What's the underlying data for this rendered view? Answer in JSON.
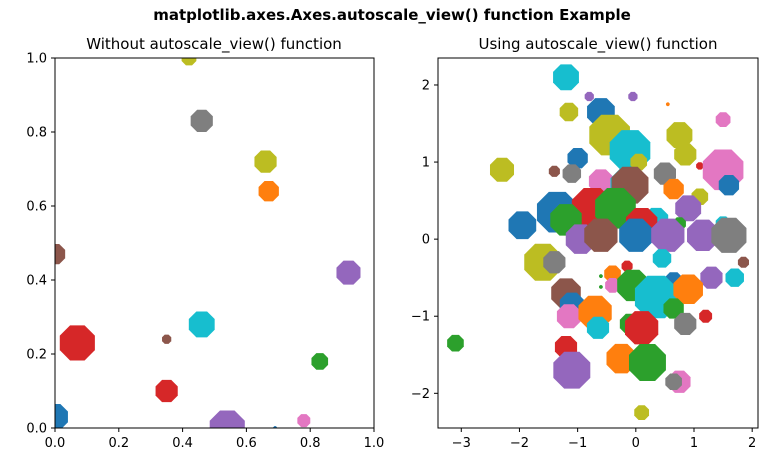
{
  "figure": {
    "title": "matplotlib.axes.Axes.autoscale_view() function Example"
  },
  "chart_data": [
    {
      "type": "scatter",
      "marker": "octagon",
      "title": "Without autoscale_view() function",
      "xlabel": "",
      "ylabel": "",
      "xlim": [
        0,
        1
      ],
      "ylim": [
        0,
        1
      ],
      "xticks": [
        "0.0",
        "0.2",
        "0.4",
        "0.6",
        "0.8",
        "1.0"
      ],
      "yticks": [
        "0.0",
        "0.2",
        "0.4",
        "0.6",
        "0.8",
        "1.0"
      ],
      "grid": false,
      "points": [
        {
          "x": 0.42,
          "y": 1.0,
          "size": 8,
          "color": "#bcbd22"
        },
        {
          "x": 0.46,
          "y": 0.83,
          "size": 12,
          "color": "#7f7f7f"
        },
        {
          "x": 0.66,
          "y": 0.72,
          "size": 12,
          "color": "#bcbd22"
        },
        {
          "x": 0.67,
          "y": 0.64,
          "size": 11,
          "color": "#ff7f0e"
        },
        {
          "x": 0.0,
          "y": 0.47,
          "size": 11,
          "color": "#8c564b"
        },
        {
          "x": 0.92,
          "y": 0.42,
          "size": 13,
          "color": "#9467bd"
        },
        {
          "x": 0.46,
          "y": 0.28,
          "size": 14,
          "color": "#17becf"
        },
        {
          "x": 0.07,
          "y": 0.23,
          "size": 19,
          "color": "#d62728"
        },
        {
          "x": 0.35,
          "y": 0.24,
          "size": 5,
          "color": "#8c564b"
        },
        {
          "x": 0.83,
          "y": 0.18,
          "size": 9,
          "color": "#2ca02c"
        },
        {
          "x": 0.35,
          "y": 0.1,
          "size": 12,
          "color": "#d62728"
        },
        {
          "x": 0.54,
          "y": 0.0,
          "size": 19,
          "color": "#9467bd"
        },
        {
          "x": 0.78,
          "y": 0.02,
          "size": 7,
          "color": "#e377c2"
        },
        {
          "x": 0.0,
          "y": 0.03,
          "size": 14,
          "color": "#1f77b4"
        },
        {
          "x": 0.69,
          "y": 0.0,
          "size": 2,
          "color": "#1f77b4"
        }
      ]
    },
    {
      "type": "scatter",
      "marker": "octagon",
      "title": "Using autoscale_view() function",
      "xlabel": "",
      "ylabel": "",
      "xlim": [
        -3.4,
        2.1
      ],
      "ylim": [
        -2.45,
        2.35
      ],
      "xticks": [
        "−3",
        "−2",
        "−1",
        "0",
        "1",
        "2"
      ],
      "xtick_values": [
        -3,
        -2,
        -1,
        0,
        1,
        2
      ],
      "yticks": [
        "−2",
        "−1",
        "0",
        "1",
        "2"
      ],
      "ytick_values": [
        -2,
        -1,
        0,
        1,
        2
      ],
      "grid": false,
      "points": [
        {
          "x": -1.2,
          "y": 2.1,
          "size": 14,
          "color": "#17becf"
        },
        {
          "x": -0.8,
          "y": 1.85,
          "size": 5,
          "color": "#9467bd"
        },
        {
          "x": -0.05,
          "y": 1.85,
          "size": 5,
          "color": "#9467bd"
        },
        {
          "x": 0.55,
          "y": 1.75,
          "size": 2,
          "color": "#ff7f0e"
        },
        {
          "x": -1.15,
          "y": 1.65,
          "size": 10,
          "color": "#bcbd22"
        },
        {
          "x": -0.6,
          "y": 1.65,
          "size": 15,
          "color": "#1f77b4"
        },
        {
          "x": 1.5,
          "y": 1.55,
          "size": 8,
          "color": "#e377c2"
        },
        {
          "x": -0.45,
          "y": 1.35,
          "size": 22,
          "color": "#bcbd22"
        },
        {
          "x": 0.75,
          "y": 1.35,
          "size": 14,
          "color": "#bcbd22"
        },
        {
          "x": -0.1,
          "y": 1.15,
          "size": 22,
          "color": "#17becf"
        },
        {
          "x": -1.0,
          "y": 1.05,
          "size": 11,
          "color": "#1f77b4"
        },
        {
          "x": 0.85,
          "y": 1.1,
          "size": 12,
          "color": "#bcbd22"
        },
        {
          "x": 0.05,
          "y": 1.0,
          "size": 9,
          "color": "#bcbd22"
        },
        {
          "x": 1.1,
          "y": 0.95,
          "size": 4,
          "color": "#d62728"
        },
        {
          "x": -2.3,
          "y": 0.9,
          "size": 13,
          "color": "#bcbd22"
        },
        {
          "x": 1.5,
          "y": 0.9,
          "size": 22,
          "color": "#e377c2"
        },
        {
          "x": -1.4,
          "y": 0.88,
          "size": 6,
          "color": "#8c564b"
        },
        {
          "x": -1.1,
          "y": 0.85,
          "size": 10,
          "color": "#7f7f7f"
        },
        {
          "x": 0.5,
          "y": 0.85,
          "size": 12,
          "color": "#7f7f7f"
        },
        {
          "x": -0.6,
          "y": 0.75,
          "size": 13,
          "color": "#e377c2"
        },
        {
          "x": -0.15,
          "y": 0.7,
          "size": 18,
          "color": "#17becf"
        },
        {
          "x": 0.65,
          "y": 0.65,
          "size": 11,
          "color": "#ff7f0e"
        },
        {
          "x": 1.6,
          "y": 0.7,
          "size": 11,
          "color": "#1f77b4"
        },
        {
          "x": 1.1,
          "y": 0.55,
          "size": 9,
          "color": "#bcbd22"
        },
        {
          "x": -0.1,
          "y": 0.7,
          "size": 20,
          "color": "#8c564b"
        },
        {
          "x": -1.35,
          "y": 0.35,
          "size": 22,
          "color": "#1f77b4"
        },
        {
          "x": -0.75,
          "y": 0.4,
          "size": 22,
          "color": "#d62728"
        },
        {
          "x": -0.35,
          "y": 0.4,
          "size": 22,
          "color": "#2ca02c"
        },
        {
          "x": 0.35,
          "y": 0.25,
          "size": 13,
          "color": "#17becf"
        },
        {
          "x": 0.9,
          "y": 0.4,
          "size": 14,
          "color": "#9467bd"
        },
        {
          "x": -1.95,
          "y": 0.18,
          "size": 15,
          "color": "#1f77b4"
        },
        {
          "x": -1.2,
          "y": 0.25,
          "size": 17,
          "color": "#2ca02c"
        },
        {
          "x": 0.75,
          "y": 0.2,
          "size": 7,
          "color": "#2ca02c"
        },
        {
          "x": 1.5,
          "y": 0.2,
          "size": 8,
          "color": "#17becf"
        },
        {
          "x": 0.1,
          "y": 0.2,
          "size": 17,
          "color": "#d62728"
        },
        {
          "x": -0.95,
          "y": 0.0,
          "size": 16,
          "color": "#9467bd"
        },
        {
          "x": -0.6,
          "y": 0.05,
          "size": 18,
          "color": "#8c564b"
        },
        {
          "x": 0.0,
          "y": 0.05,
          "size": 18,
          "color": "#1f77b4"
        },
        {
          "x": 0.55,
          "y": 0.05,
          "size": 18,
          "color": "#9467bd"
        },
        {
          "x": 1.15,
          "y": 0.05,
          "size": 17,
          "color": "#9467bd"
        },
        {
          "x": 1.6,
          "y": 0.05,
          "size": 19,
          "color": "#7f7f7f"
        },
        {
          "x": 0.45,
          "y": -0.25,
          "size": 10,
          "color": "#17becf"
        },
        {
          "x": -1.6,
          "y": -0.3,
          "size": 20,
          "color": "#bcbd22"
        },
        {
          "x": -1.4,
          "y": -0.3,
          "size": 12,
          "color": "#7f7f7f"
        },
        {
          "x": -0.15,
          "y": -0.35,
          "size": 6,
          "color": "#d62728"
        },
        {
          "x": 1.85,
          "y": -0.3,
          "size": 6,
          "color": "#8c564b"
        },
        {
          "x": -0.4,
          "y": -0.45,
          "size": 9,
          "color": "#ff7f0e"
        },
        {
          "x": -0.6,
          "y": -0.48,
          "size": 2,
          "color": "#2ca02c"
        },
        {
          "x": -0.4,
          "y": -0.6,
          "size": 8,
          "color": "#e377c2"
        },
        {
          "x": 0.65,
          "y": -0.55,
          "size": 10,
          "color": "#1f77b4"
        },
        {
          "x": 1.3,
          "y": -0.5,
          "size": 12,
          "color": "#9467bd"
        },
        {
          "x": 1.7,
          "y": -0.5,
          "size": 10,
          "color": "#17becf"
        },
        {
          "x": -0.05,
          "y": -0.6,
          "size": 17,
          "color": "#2ca02c"
        },
        {
          "x": -0.6,
          "y": -0.62,
          "size": 2,
          "color": "#2ca02c"
        },
        {
          "x": -1.2,
          "y": -0.7,
          "size": 16,
          "color": "#8c564b"
        },
        {
          "x": 0.35,
          "y": -0.75,
          "size": 23,
          "color": "#17becf"
        },
        {
          "x": 0.9,
          "y": -0.65,
          "size": 16,
          "color": "#ff7f0e"
        },
        {
          "x": -1.1,
          "y": -0.85,
          "size": 13,
          "color": "#1f77b4"
        },
        {
          "x": -1.15,
          "y": -1.0,
          "size": 13,
          "color": "#e377c2"
        },
        {
          "x": -0.7,
          "y": -0.95,
          "size": 18,
          "color": "#ff7f0e"
        },
        {
          "x": 0.65,
          "y": -0.9,
          "size": 11,
          "color": "#2ca02c"
        },
        {
          "x": 1.2,
          "y": -1.0,
          "size": 7,
          "color": "#d62728"
        },
        {
          "x": -0.1,
          "y": -1.1,
          "size": 11,
          "color": "#2ca02c"
        },
        {
          "x": 0.1,
          "y": -1.15,
          "size": 18,
          "color": "#d62728"
        },
        {
          "x": 0.85,
          "y": -1.1,
          "size": 12,
          "color": "#7f7f7f"
        },
        {
          "x": -0.65,
          "y": -1.15,
          "size": 12,
          "color": "#17becf"
        },
        {
          "x": -1.2,
          "y": -1.4,
          "size": 12,
          "color": "#d62728"
        },
        {
          "x": -3.1,
          "y": -1.35,
          "size": 9,
          "color": "#2ca02c"
        },
        {
          "x": -0.25,
          "y": -1.55,
          "size": 16,
          "color": "#ff7f0e"
        },
        {
          "x": 0.2,
          "y": -1.6,
          "size": 20,
          "color": "#2ca02c"
        },
        {
          "x": -1.1,
          "y": -1.7,
          "size": 20,
          "color": "#9467bd"
        },
        {
          "x": 0.75,
          "y": -1.85,
          "size": 12,
          "color": "#e377c2"
        },
        {
          "x": 0.65,
          "y": -1.85,
          "size": 9,
          "color": "#7f7f7f"
        },
        {
          "x": 0.1,
          "y": -2.25,
          "size": 8,
          "color": "#bcbd22"
        }
      ]
    }
  ]
}
